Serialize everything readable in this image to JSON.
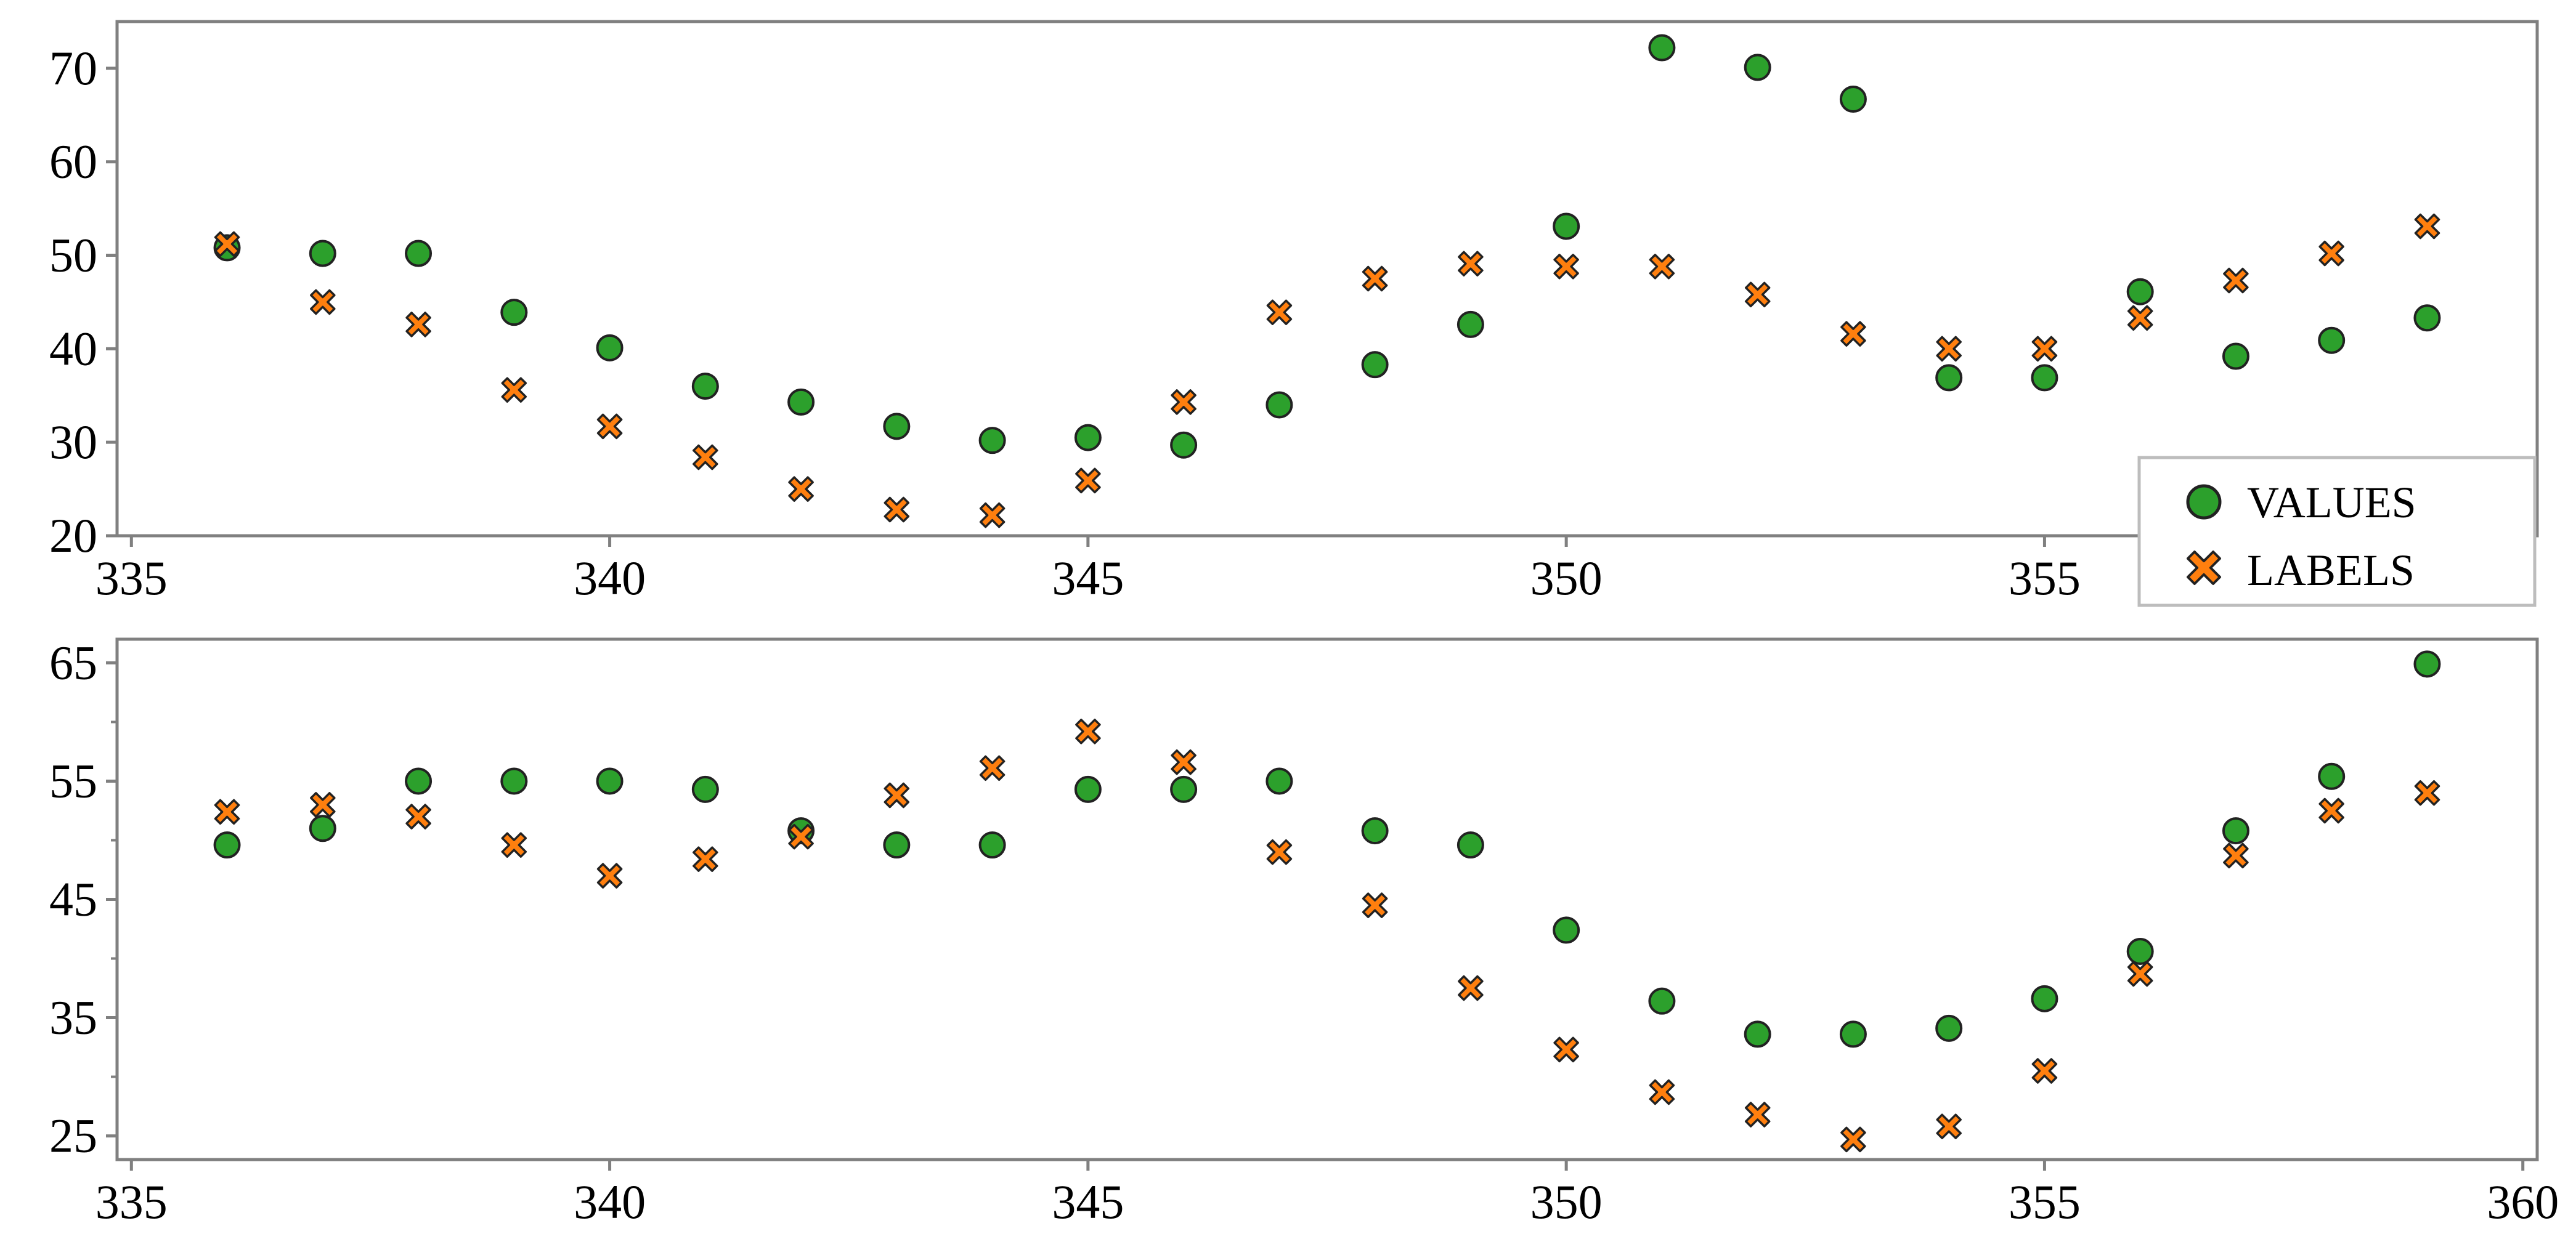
{
  "chart_data": [
    {
      "type": "scatter",
      "panel": "top",
      "title": "",
      "xlabel": "",
      "ylabel": "",
      "xlim": [
        334.85,
        360.15
      ],
      "ylim": [
        20,
        75
      ],
      "xticks": [
        335,
        340,
        345,
        350,
        355
      ],
      "yticks": [
        20,
        30,
        40,
        50,
        60,
        70
      ],
      "grid": false,
      "legend": "right-bottom, outside plot area",
      "x": [
        336,
        337,
        338,
        339,
        340,
        341,
        342,
        343,
        344,
        345,
        346,
        347,
        348,
        349,
        350,
        351,
        352,
        353,
        354,
        355,
        356,
        357,
        358,
        359
      ],
      "series": [
        {
          "name": "VALUES",
          "marker": "circle",
          "color": "#2ca02c",
          "values": [
            50.8,
            50.2,
            50.2,
            43.9,
            40.1,
            36.0,
            34.3,
            31.7,
            30.2,
            30.5,
            29.7,
            34.0,
            38.3,
            42.6,
            53.1,
            72.2,
            70.1,
            66.7,
            36.9,
            36.9,
            46.1,
            39.2,
            40.9,
            43.3
          ]
        },
        {
          "name": "LABELS",
          "marker": "x-filled",
          "color": "#ff7f0e",
          "values": [
            51.2,
            45.0,
            42.6,
            35.6,
            31.7,
            28.4,
            25.0,
            22.8,
            22.2,
            25.9,
            34.3,
            43.9,
            47.5,
            49.1,
            48.8,
            48.8,
            45.8,
            41.6,
            40.0,
            40.0,
            43.3,
            47.3,
            50.2,
            53.1
          ]
        }
      ]
    },
    {
      "type": "scatter",
      "panel": "bottom",
      "title": "",
      "xlabel": "",
      "ylabel": "",
      "xlim": [
        334.85,
        360.15
      ],
      "ylim": [
        23,
        67
      ],
      "xticks": [
        335,
        340,
        345,
        350,
        355,
        360
      ],
      "yticks": [
        25,
        35,
        45,
        55,
        65
      ],
      "minor_yticks": [
        30,
        40,
        50,
        60
      ],
      "grid": false,
      "x": [
        336,
        337,
        338,
        339,
        340,
        341,
        342,
        343,
        344,
        345,
        346,
        347,
        348,
        349,
        350,
        351,
        352,
        353,
        354,
        355,
        356,
        357,
        358,
        359
      ],
      "series": [
        {
          "name": "VALUES",
          "marker": "circle",
          "color": "#2ca02c",
          "values": [
            49.6,
            51.0,
            55.0,
            55.0,
            55.0,
            54.3,
            50.8,
            49.6,
            49.6,
            54.3,
            54.3,
            55.0,
            50.8,
            49.6,
            42.4,
            36.4,
            33.6,
            33.6,
            34.1,
            36.6,
            40.6,
            50.8,
            55.4,
            64.9
          ]
        },
        {
          "name": "LABELS",
          "marker": "x-filled",
          "color": "#ff7f0e",
          "values": [
            52.4,
            53.0,
            52.0,
            49.6,
            47.0,
            48.4,
            50.3,
            53.8,
            56.1,
            59.2,
            56.6,
            49.0,
            44.5,
            37.5,
            32.3,
            28.7,
            26.8,
            24.7,
            25.8,
            30.5,
            38.7,
            48.7,
            52.5,
            54.0
          ]
        }
      ]
    }
  ],
  "legend": {
    "items": [
      {
        "label": "VALUES",
        "marker": "circle",
        "color": "#2ca02c"
      },
      {
        "label": "LABELS",
        "marker": "x-filled",
        "color": "#ff7f0e"
      }
    ]
  }
}
